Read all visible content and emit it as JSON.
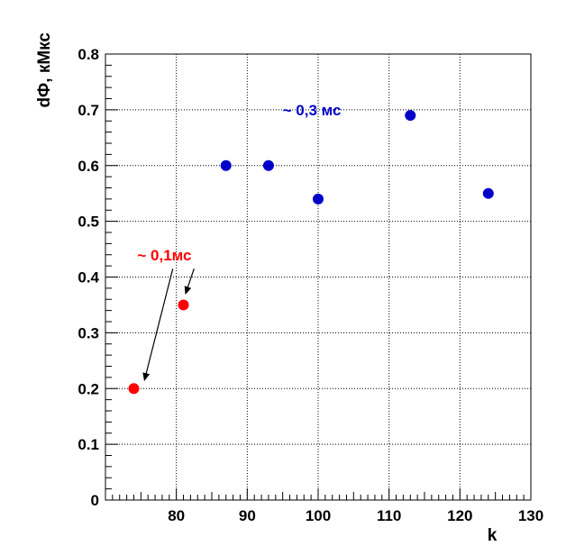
{
  "chart_data": {
    "type": "scatter",
    "title": "",
    "xlabel": "k",
    "ylabel": "dФ, кМкс",
    "xlim": [
      70,
      130
    ],
    "ylim": [
      0,
      0.8
    ],
    "x_ticks": [
      80,
      90,
      100,
      110,
      120,
      130
    ],
    "x_tick_labels": [
      "80",
      "90",
      "100",
      "110",
      "120",
      "130"
    ],
    "y_ticks": [
      0,
      0.1,
      0.2,
      0.3,
      0.4,
      0.5,
      0.6,
      0.7,
      0.8
    ],
    "y_tick_labels": [
      "0",
      "0.1",
      "0.2",
      "0.3",
      "0.4",
      "0.5",
      "0.6",
      "0.7",
      "0.8"
    ],
    "grid": true,
    "series": [
      {
        "color": "#ff0000",
        "x": [
          74,
          81
        ],
        "y": [
          0.2,
          0.35
        ]
      },
      {
        "color": "#0000c8",
        "x": [
          87,
          93,
          100,
          113,
          124
        ],
        "y": [
          0.6,
          0.6,
          0.54,
          0.69,
          0.55
        ]
      }
    ],
    "annotations": [
      {
        "text": "~ 0,3 мс",
        "color": "#0000c8",
        "x": 95,
        "y": 0.69
      },
      {
        "text": "~ 0,1мс",
        "color": "#ff0000",
        "x": 74.5,
        "y": 0.43,
        "arrows": [
          {
            "from": [
              79.5,
              0.415
            ],
            "to": [
              75.5,
              0.215
            ]
          },
          {
            "from": [
              82.5,
              0.415
            ],
            "to": [
              81.3,
              0.37
            ]
          }
        ]
      }
    ]
  }
}
